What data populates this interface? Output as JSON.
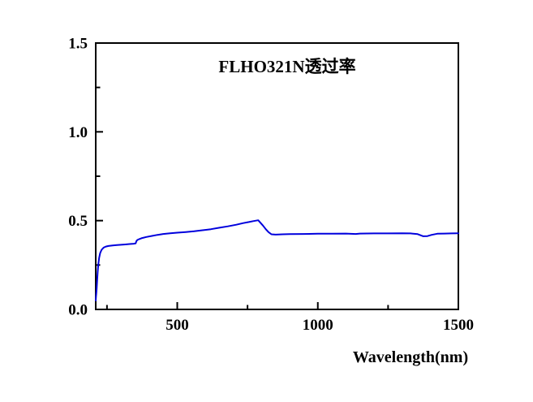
{
  "chart_data": {
    "type": "line",
    "title": "FLHO321N透过率",
    "xlabel": "Wavelength(nm)",
    "ylabel": "",
    "xlim": [
      210,
      1500
    ],
    "ylim": [
      0,
      1.5
    ],
    "grid": false,
    "legend": "none",
    "ticks_direction": "in",
    "colors": {
      "line": "#0000dd",
      "axis": "#000000",
      "background": "#ffffff"
    },
    "x_major_ticks": [
      {
        "v": 500,
        "label": "500"
      },
      {
        "v": 1000,
        "label": "1000"
      },
      {
        "v": 1500,
        "label": "1500"
      }
    ],
    "x_minor_ticks": [
      250,
      750,
      1250
    ],
    "y_major_ticks": [
      {
        "v": 0,
        "label": "0.0"
      },
      {
        "v": 0.5,
        "label": "0.5"
      },
      {
        "v": 1,
        "label": "1.0"
      },
      {
        "v": 1.5,
        "label": "1.5"
      }
    ],
    "y_minor_ticks": [
      0.25,
      0.75,
      1.25
    ],
    "series": [
      {
        "name": "FLHO321N transmittance",
        "points": [
          [
            210,
            0.05
          ],
          [
            211,
            0.07
          ],
          [
            212,
            0.09
          ],
          [
            213.5,
            0.12
          ],
          [
            215,
            0.16
          ],
          [
            217,
            0.21
          ],
          [
            219,
            0.25
          ],
          [
            222,
            0.29
          ],
          [
            226,
            0.318
          ],
          [
            231,
            0.336
          ],
          [
            238,
            0.348
          ],
          [
            246,
            0.354
          ],
          [
            255,
            0.357
          ],
          [
            270,
            0.36
          ],
          [
            285,
            0.362
          ],
          [
            300,
            0.364
          ],
          [
            315,
            0.366
          ],
          [
            330,
            0.368
          ],
          [
            345,
            0.37
          ],
          [
            352,
            0.372
          ],
          [
            355,
            0.385
          ],
          [
            358,
            0.391
          ],
          [
            365,
            0.396
          ],
          [
            375,
            0.402
          ],
          [
            390,
            0.408
          ],
          [
            410,
            0.414
          ],
          [
            430,
            0.42
          ],
          [
            450,
            0.425
          ],
          [
            475,
            0.429
          ],
          [
            500,
            0.432
          ],
          [
            530,
            0.436
          ],
          [
            560,
            0.44
          ],
          [
            590,
            0.446
          ],
          [
            620,
            0.452
          ],
          [
            650,
            0.46
          ],
          [
            680,
            0.468
          ],
          [
            710,
            0.477
          ],
          [
            735,
            0.486
          ],
          [
            755,
            0.492
          ],
          [
            770,
            0.497
          ],
          [
            780,
            0.5
          ],
          [
            788,
            0.502
          ],
          [
            795,
            0.49
          ],
          [
            805,
            0.472
          ],
          [
            815,
            0.452
          ],
          [
            825,
            0.435
          ],
          [
            835,
            0.423
          ],
          [
            850,
            0.421
          ],
          [
            875,
            0.423
          ],
          [
            900,
            0.424
          ],
          [
            950,
            0.425
          ],
          [
            1000,
            0.426
          ],
          [
            1050,
            0.426
          ],
          [
            1100,
            0.427
          ],
          [
            1135,
            0.425
          ],
          [
            1150,
            0.427
          ],
          [
            1200,
            0.428
          ],
          [
            1250,
            0.428
          ],
          [
            1300,
            0.429
          ],
          [
            1330,
            0.428
          ],
          [
            1355,
            0.424
          ],
          [
            1375,
            0.412
          ],
          [
            1390,
            0.413
          ],
          [
            1405,
            0.42
          ],
          [
            1425,
            0.426
          ],
          [
            1450,
            0.427
          ],
          [
            1475,
            0.428
          ],
          [
            1500,
            0.429
          ]
        ]
      }
    ]
  }
}
